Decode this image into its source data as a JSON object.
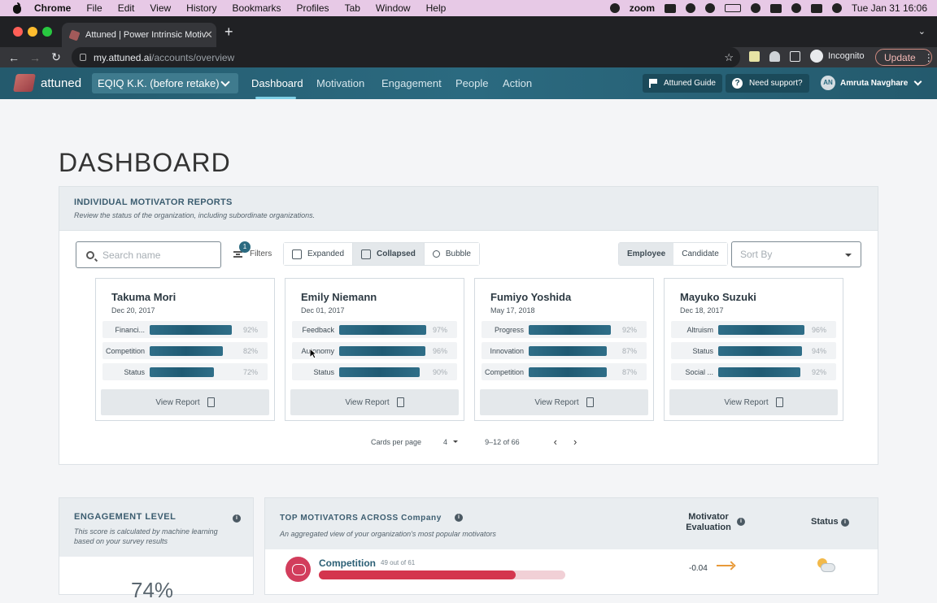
{
  "mac_menubar": {
    "app": "Chrome",
    "items": [
      "File",
      "Edit",
      "View",
      "History",
      "Bookmarks",
      "Profiles",
      "Tab",
      "Window",
      "Help"
    ],
    "zoom_label": "zoom",
    "datetime": "Tue Jan 31  16:06"
  },
  "browser": {
    "tab_title": "Attuned | Power Intrinsic Motiv",
    "url_host": "my.attuned.ai",
    "url_path": "/accounts/overview",
    "incognito_label": "Incognito",
    "update_label": "Update"
  },
  "app_nav": {
    "logo_text": "attuned",
    "org_select": "EQIQ K.K. (before retake)",
    "links": [
      "Dashboard",
      "Motivation",
      "Engagement",
      "People",
      "Action"
    ],
    "active_link": "Dashboard",
    "guide_label": "Attuned Guide",
    "support_label": "Need support?",
    "user_initials": "AN",
    "user_name": "Amruta Navghare"
  },
  "page": {
    "title": "DASHBOARD"
  },
  "reports": {
    "heading": "INDIVIDUAL MOTIVATOR REPORTS",
    "subheading": "Review the status of the organization, including subordinate organizations.",
    "search_placeholder": "Search name",
    "filters_label": "Filters",
    "filters_count": "1",
    "view_modes": [
      "Expanded",
      "Collapsed",
      "Bubble"
    ],
    "active_view": "Collapsed",
    "types": [
      "Employee",
      "Candidate"
    ],
    "active_type": "Employee",
    "sort_placeholder": "Sort By",
    "view_report_label": "View Report",
    "cards": [
      {
        "name": "Takuma Mori",
        "date": "Dec 20, 2017",
        "motivators": [
          {
            "label": "Financi...",
            "percent": 92,
            "percent_label": "92%"
          },
          {
            "label": "Competition",
            "percent": 82,
            "percent_label": "82%"
          },
          {
            "label": "Status",
            "percent": 72,
            "percent_label": "72%"
          }
        ]
      },
      {
        "name": "Emily Niemann",
        "date": "Dec 01, 2017",
        "motivators": [
          {
            "label": "Feedback",
            "percent": 97,
            "percent_label": "97%"
          },
          {
            "label": "Autonomy",
            "percent": 96,
            "percent_label": "96%"
          },
          {
            "label": "Status",
            "percent": 90,
            "percent_label": "90%"
          }
        ]
      },
      {
        "name": "Fumiyo Yoshida",
        "date": "May 17, 2018",
        "motivators": [
          {
            "label": "Progress",
            "percent": 92,
            "percent_label": "92%"
          },
          {
            "label": "Innovation",
            "percent": 87,
            "percent_label": "87%"
          },
          {
            "label": "Competition",
            "percent": 87,
            "percent_label": "87%"
          }
        ]
      },
      {
        "name": "Mayuko Suzuki",
        "date": "Dec 18, 2017",
        "motivators": [
          {
            "label": "Altruism",
            "percent": 96,
            "percent_label": "96%"
          },
          {
            "label": "Status",
            "percent": 94,
            "percent_label": "94%"
          },
          {
            "label": "Social ...",
            "percent": 92,
            "percent_label": "92%"
          }
        ]
      }
    ],
    "pagination": {
      "per_page_label": "Cards per page",
      "per_page_value": "4",
      "range": "9–12 of 66"
    }
  },
  "engagement": {
    "heading": "ENGAGEMENT LEVEL",
    "subheading": "This score is calculated by machine learning based on your survey results",
    "value": "74%"
  },
  "top_motivators": {
    "heading": "TOP MOTIVATORS ACROSS Company",
    "subheading": "An aggregated view of your organization's most popular motivators",
    "col_evaluation": "Motivator Evaluation",
    "col_status": "Status",
    "rows": [
      {
        "name": "Competition",
        "count": "49 out of 61",
        "fraction": 0.8,
        "evaluation": "-0.04",
        "accent": "#d4354e"
      }
    ]
  }
}
